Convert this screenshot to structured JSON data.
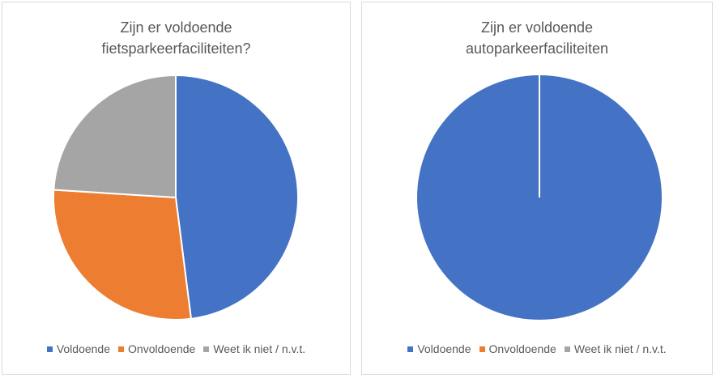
{
  "chart_data": [
    {
      "type": "pie",
      "title_lines": [
        "Zijn er voldoende",
        "fietsparkeerfaciliteiten?"
      ],
      "categories": [
        "Voldoende",
        "Onvoldoende",
        "Weet ik niet / n.v.t."
      ],
      "values": [
        48,
        28,
        24
      ],
      "unit": "percent (estimated)",
      "colors": [
        "#4472C4",
        "#ED7D31",
        "#A5A5A5"
      ],
      "legend_position": "bottom"
    },
    {
      "type": "pie",
      "title_lines": [
        "Zijn er voldoende",
        "autoparkeerfaciliteiten"
      ],
      "categories": [
        "Voldoende",
        "Onvoldoende",
        "Weet ik niet / n.v.t."
      ],
      "values": [
        100,
        0,
        0
      ],
      "unit": "percent (estimated)",
      "colors": [
        "#4472C4",
        "#ED7D31",
        "#A5A5A5"
      ],
      "legend_position": "bottom"
    }
  ]
}
